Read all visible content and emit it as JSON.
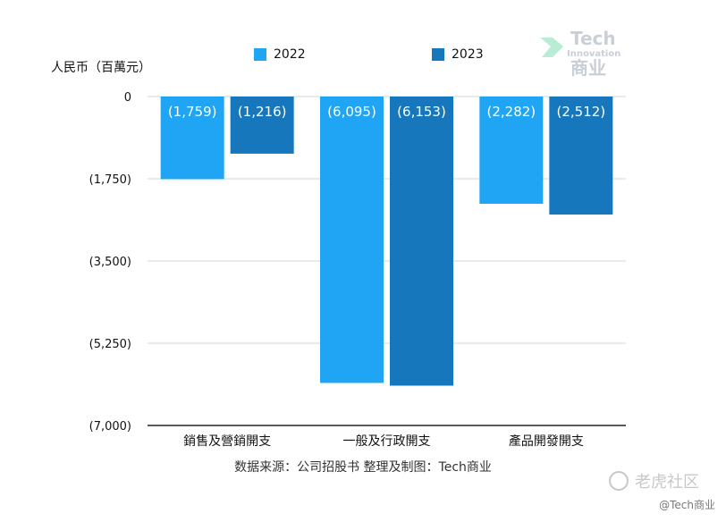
{
  "chart_data": {
    "type": "bar",
    "unit_label": "人民币（百萬元）",
    "categories": [
      "銷售及營銷開支",
      "一般及行政開支",
      "產品開發開支"
    ],
    "series": [
      {
        "name": "2022",
        "color": "#1fa5f4",
        "values": [
          -1759,
          -6095,
          -2282
        ],
        "labels": [
          "(1,759)",
          "(6,095)",
          "(2,282)"
        ]
      },
      {
        "name": "2023",
        "color": "#1677bd",
        "values": [
          -1216,
          -6153,
          -2512
        ],
        "labels": [
          "(1,216)",
          "(6,153)",
          "(2,512)"
        ]
      }
    ],
    "ylim": [
      -7000,
      0
    ],
    "yticks": [
      0,
      -1750,
      -3500,
      -5250,
      -7000
    ],
    "ytick_labels": [
      "0",
      "(1,750)",
      "(3,500)",
      "(5,250)",
      "(7,000)"
    ],
    "grid": true,
    "legend_position": "top"
  },
  "source_note": "数据来源：公司招股书  整理及制图：Tech商业",
  "watermark": {
    "brand_top": "Tech",
    "brand_mid": "Innovation",
    "brand_bottom": "商业"
  },
  "footer": {
    "tiger_text": "老虎社区",
    "credit": "@Tech商业"
  }
}
